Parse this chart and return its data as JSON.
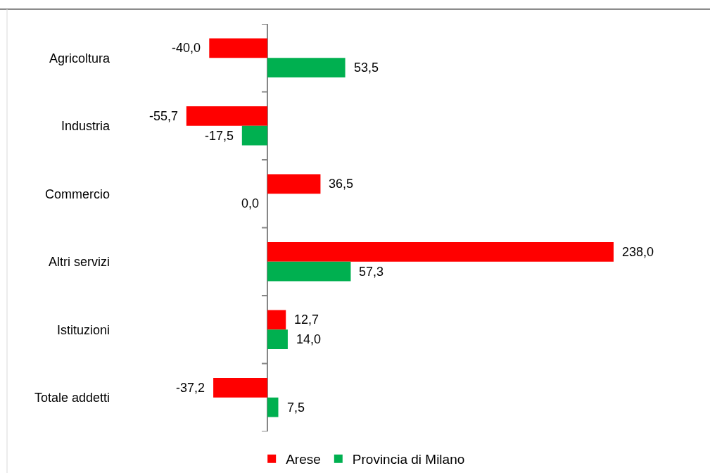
{
  "chart_data": {
    "type": "bar",
    "orientation": "horizontal",
    "categories": [
      "Agricoltura",
      "Industria",
      "Commercio",
      "Altri servizi",
      "Istituzioni",
      "Totale addetti"
    ],
    "series": [
      {
        "name": "Arese",
        "color": "#ff0000",
        "values": [
          -40.0,
          -55.7,
          36.5,
          238.0,
          12.7,
          -37.2
        ],
        "value_labels": [
          "-40,0",
          "-55,7",
          "36,5",
          "238,0",
          "12,7",
          "-37,2"
        ]
      },
      {
        "name": "Provincia di Milano",
        "color": "#00b050",
        "values": [
          53.5,
          -17.5,
          0.0,
          57.3,
          14.0,
          7.5
        ],
        "value_labels": [
          "53,5",
          "-17,5",
          "0,0",
          "57,3",
          "14,0",
          "7,5"
        ]
      }
    ],
    "tick_labels": "y",
    "legend": "bottom"
  }
}
